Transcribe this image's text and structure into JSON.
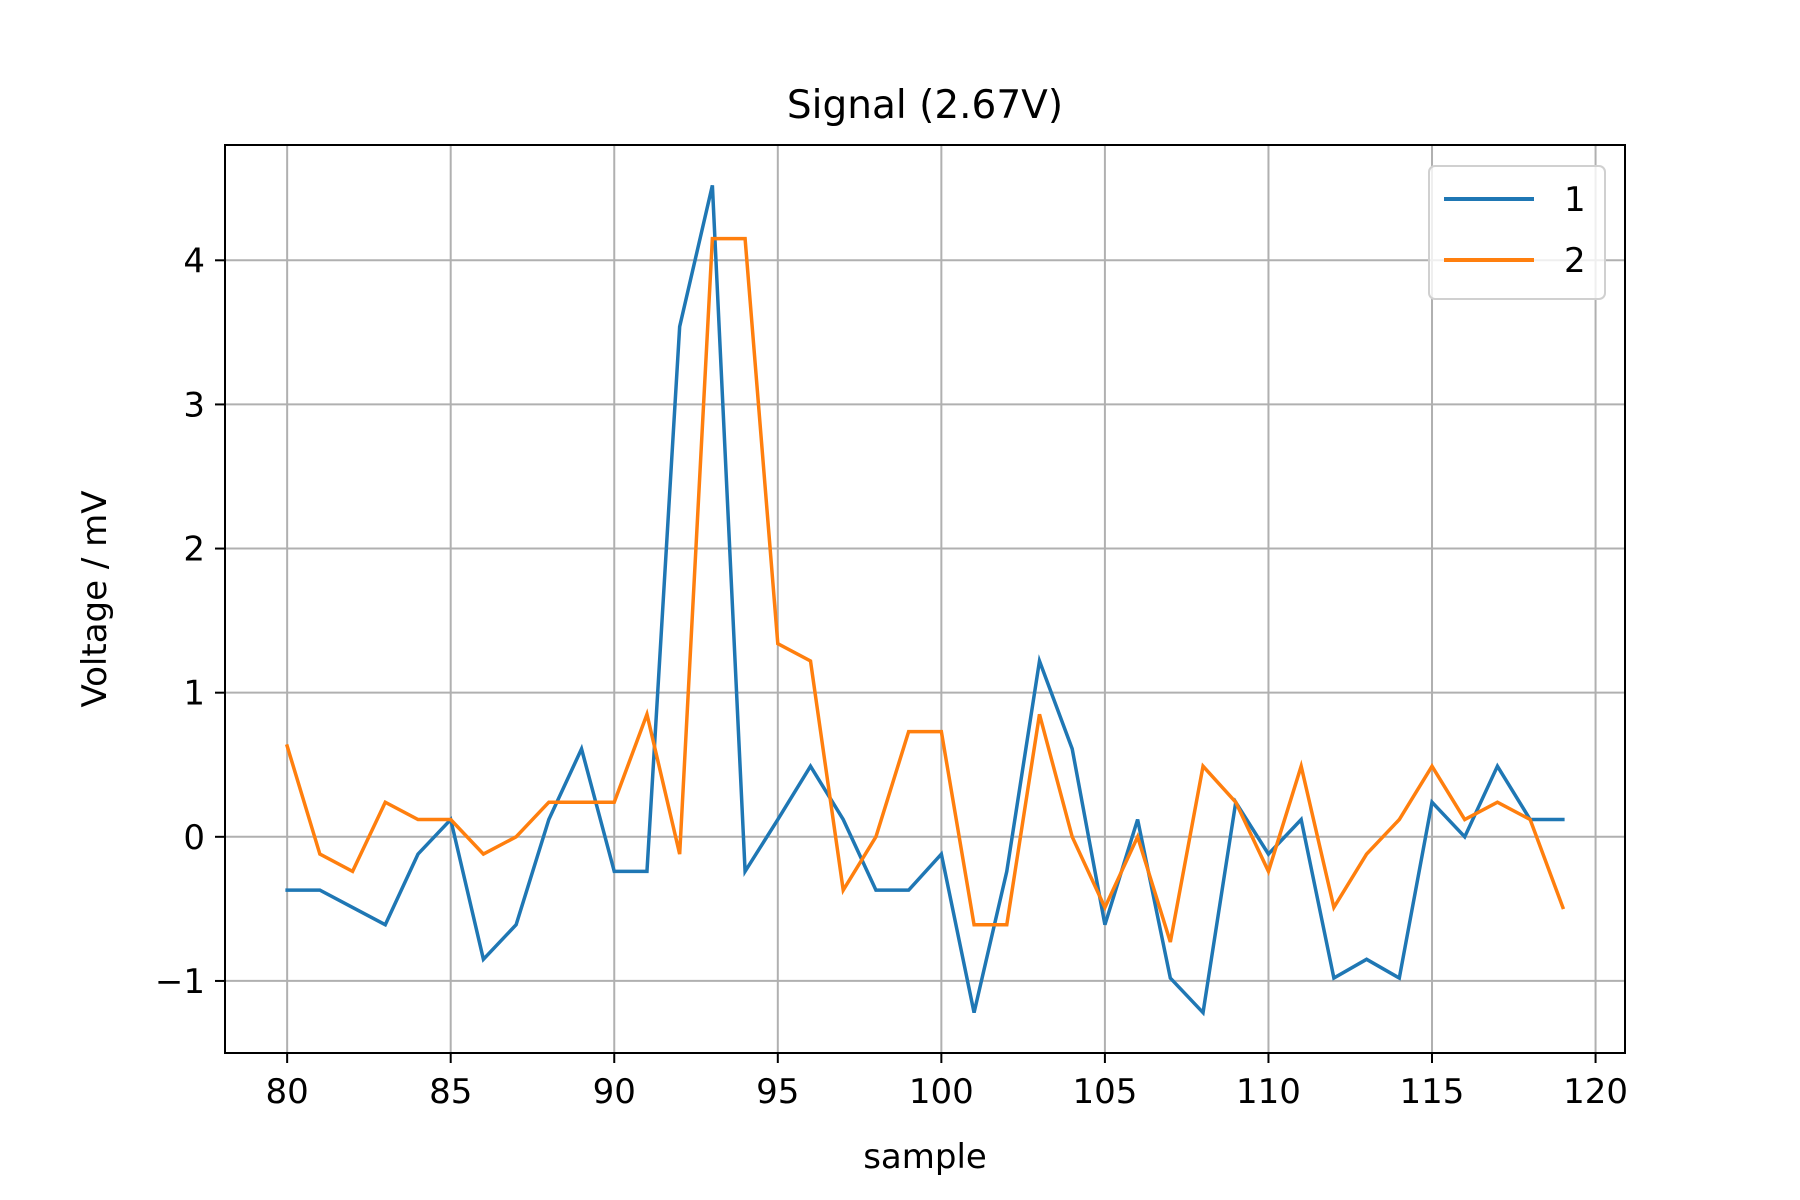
{
  "chart_data": {
    "type": "line",
    "title": "Signal (2.67V)",
    "xlabel": "sample",
    "ylabel": "Voltage / mV",
    "xlim": [
      78.1,
      120.9
    ],
    "ylim": [
      -1.5,
      4.8
    ],
    "xticks": [
      80,
      85,
      90,
      95,
      100,
      105,
      110,
      115,
      120
    ],
    "xtick_labels": [
      "80",
      "85",
      "90",
      "95",
      "100",
      "105",
      "110",
      "115",
      "120"
    ],
    "yticks": [
      -1,
      0,
      1,
      2,
      3,
      4
    ],
    "ytick_labels": [
      "−1",
      "0",
      "1",
      "2",
      "3",
      "4"
    ],
    "grid": true,
    "legend_position": "top-right",
    "x": [
      80,
      81,
      82,
      83,
      84,
      85,
      86,
      87,
      88,
      89,
      90,
      91,
      92,
      93,
      94,
      95,
      96,
      97,
      98,
      99,
      100,
      101,
      102,
      103,
      104,
      105,
      106,
      107,
      108,
      109,
      110,
      111,
      112,
      113,
      114,
      115,
      116,
      117,
      118,
      119
    ],
    "series": [
      {
        "name": "1",
        "color": "#1f77b4",
        "values": [
          -0.37,
          -0.37,
          -0.49,
          -0.61,
          -0.12,
          0.12,
          -0.85,
          -0.61,
          0.12,
          0.61,
          -0.24,
          -0.24,
          3.54,
          4.52,
          -0.24,
          0.12,
          0.49,
          0.12,
          -0.37,
          -0.37,
          -0.12,
          -1.22,
          -0.24,
          1.22,
          0.61,
          -0.61,
          0.12,
          -0.98,
          -1.22,
          0.24,
          -0.12,
          0.12,
          -0.98,
          -0.85,
          -0.98,
          0.24,
          0.0,
          0.49,
          0.12,
          0.12
        ]
      },
      {
        "name": "2",
        "color": "#ff7f0e",
        "values": [
          0.63,
          -0.12,
          -0.24,
          0.24,
          0.12,
          0.12,
          -0.12,
          0.0,
          0.24,
          0.24,
          0.24,
          0.85,
          -0.12,
          4.15,
          4.15,
          1.34,
          1.22,
          -0.37,
          0.0,
          0.73,
          0.73,
          -0.61,
          -0.61,
          0.85,
          0.0,
          -0.49,
          0.0,
          -0.73,
          0.49,
          0.24,
          -0.24,
          0.49,
          -0.49,
          -0.12,
          0.12,
          0.49,
          0.12,
          0.24,
          0.12,
          -0.49
        ]
      }
    ]
  }
}
